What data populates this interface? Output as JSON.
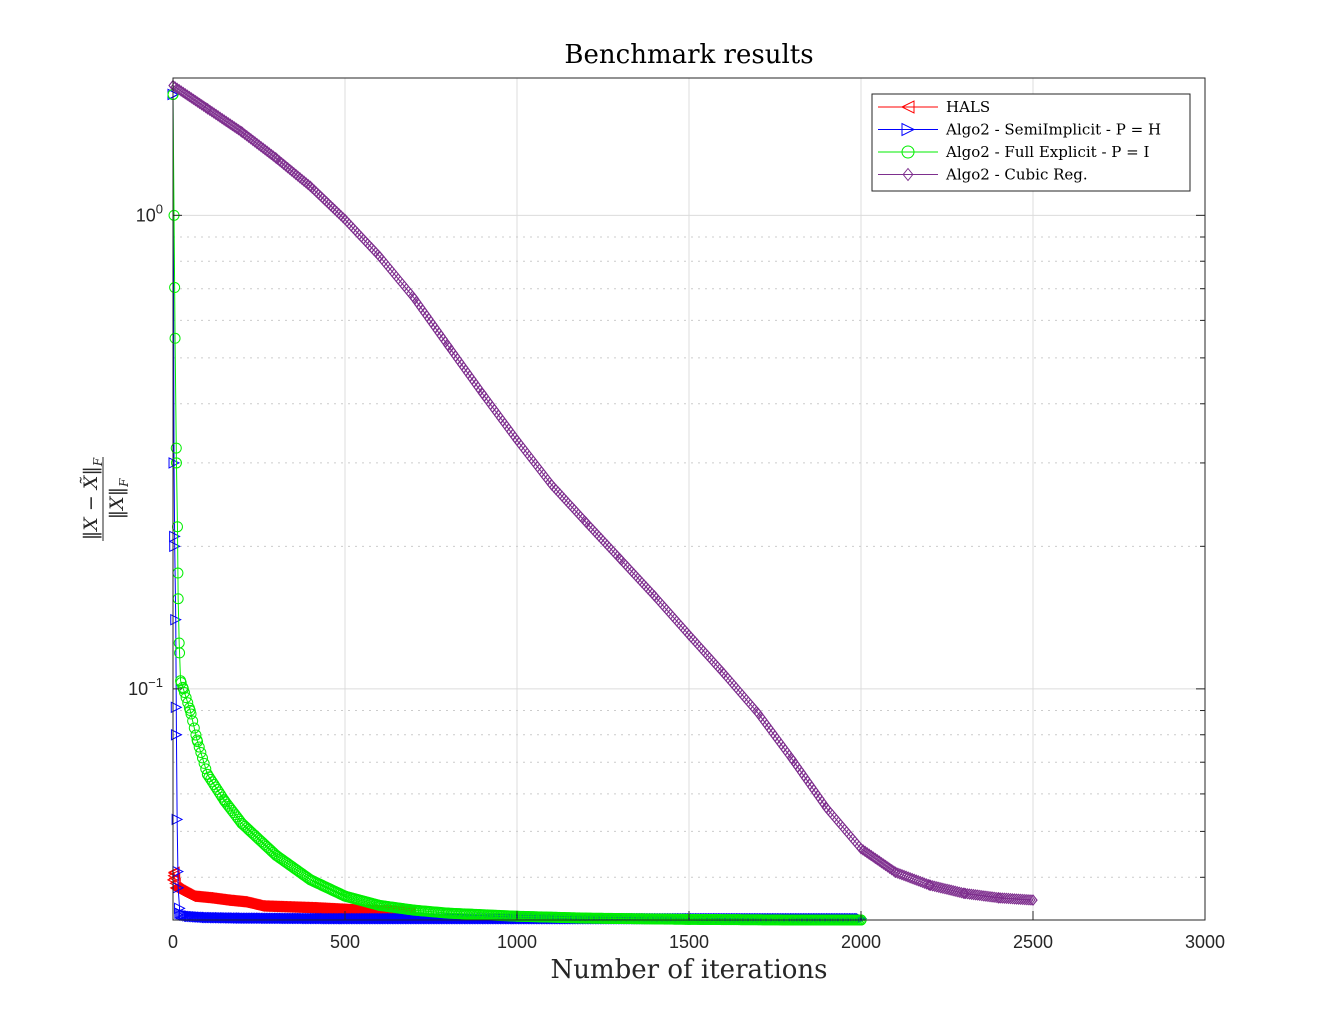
{
  "chart_data": {
    "type": "line",
    "title": "Benchmark results",
    "xlabel": "Number of iterations",
    "ylabel": "||X − X̃||_F / ||X||_F",
    "xlim": [
      0,
      3000
    ],
    "ylim": [
      0.0325,
      1.95
    ],
    "y_scale": "log",
    "grid": true,
    "legend_position": "top-right",
    "x_ticks": [
      {
        "value": 0,
        "label": "0"
      },
      {
        "value": 500,
        "label": "500"
      },
      {
        "value": 1000,
        "label": "1000"
      },
      {
        "value": 1500,
        "label": "1500"
      },
      {
        "value": 2000,
        "label": "2000"
      },
      {
        "value": 2500,
        "label": "2500"
      },
      {
        "value": 3000,
        "label": "3000"
      }
    ],
    "y_ticks": [
      {
        "value": 0.1,
        "label_base": "10",
        "label_exp": "−1"
      },
      {
        "value": 1,
        "label_base": "10",
        "label_exp": "0"
      }
    ],
    "series": [
      {
        "name": "HALS",
        "color": "#ff0000",
        "marker": "triangle-left",
        "points": [
          [
            0,
            0.0395
          ],
          [
            3,
            0.041
          ],
          [
            8,
            0.038
          ],
          [
            20,
            0.0375
          ],
          [
            50,
            0.0365
          ],
          [
            100,
            0.0362
          ],
          [
            150,
            0.0358
          ],
          [
            200,
            0.0355
          ],
          [
            250,
            0.0348
          ],
          [
            300,
            0.0347
          ],
          [
            400,
            0.0345
          ],
          [
            500,
            0.0342
          ],
          [
            600,
            0.034
          ],
          [
            690,
            0.0339
          ]
        ]
      },
      {
        "name": "Algo2 - SemiImplicit - P = H",
        "color": "#0000ff",
        "marker": "triangle-right",
        "points": [
          [
            0,
            1.8
          ],
          [
            3,
            0.3
          ],
          [
            5,
            0.2
          ],
          [
            8,
            0.14
          ],
          [
            10,
            0.08
          ],
          [
            12,
            0.053
          ],
          [
            15,
            0.038
          ],
          [
            20,
            0.0336
          ],
          [
            30,
            0.0333
          ],
          [
            50,
            0.0331
          ],
          [
            100,
            0.0329
          ],
          [
            200,
            0.0328
          ],
          [
            500,
            0.0327
          ],
          [
            1000,
            0.0327
          ],
          [
            1500,
            0.0327
          ],
          [
            2000,
            0.0327
          ]
        ]
      },
      {
        "name": "Algo2 - Full Explicit - P = I",
        "color": "#00ee00",
        "marker": "circle",
        "points": [
          [
            0,
            1.8
          ],
          [
            3,
            1.0
          ],
          [
            6,
            0.55
          ],
          [
            10,
            0.3
          ],
          [
            13,
            0.22
          ],
          [
            15,
            0.155
          ],
          [
            18,
            0.125
          ],
          [
            22,
            0.104
          ],
          [
            30,
            0.1
          ],
          [
            50,
            0.09
          ],
          [
            70,
            0.078
          ],
          [
            100,
            0.066
          ],
          [
            150,
            0.058
          ],
          [
            200,
            0.052
          ],
          [
            300,
            0.0445
          ],
          [
            400,
            0.0395
          ],
          [
            500,
            0.0365
          ],
          [
            600,
            0.0349
          ],
          [
            700,
            0.0341
          ],
          [
            800,
            0.0336
          ],
          [
            1000,
            0.0331
          ],
          [
            1200,
            0.0328
          ],
          [
            1500,
            0.0326
          ],
          [
            1800,
            0.0325
          ],
          [
            2000,
            0.0325
          ]
        ]
      },
      {
        "name": "Algo2 - Cubic Reg.",
        "color": "#7e2f8e",
        "marker": "diamond",
        "points": [
          [
            0,
            1.88
          ],
          [
            100,
            1.68
          ],
          [
            200,
            1.5
          ],
          [
            300,
            1.32
          ],
          [
            400,
            1.15
          ],
          [
            500,
            0.98
          ],
          [
            600,
            0.82
          ],
          [
            700,
            0.67
          ],
          [
            800,
            0.53
          ],
          [
            900,
            0.42
          ],
          [
            1000,
            0.335
          ],
          [
            1100,
            0.27
          ],
          [
            1200,
            0.225
          ],
          [
            1300,
            0.188
          ],
          [
            1400,
            0.157
          ],
          [
            1500,
            0.13
          ],
          [
            1600,
            0.108
          ],
          [
            1700,
            0.089
          ],
          [
            1800,
            0.071
          ],
          [
            1900,
            0.056
          ],
          [
            2000,
            0.046
          ],
          [
            2100,
            0.041
          ],
          [
            2200,
            0.0385
          ],
          [
            2300,
            0.037
          ],
          [
            2400,
            0.0362
          ],
          [
            2500,
            0.0358
          ]
        ]
      }
    ]
  }
}
